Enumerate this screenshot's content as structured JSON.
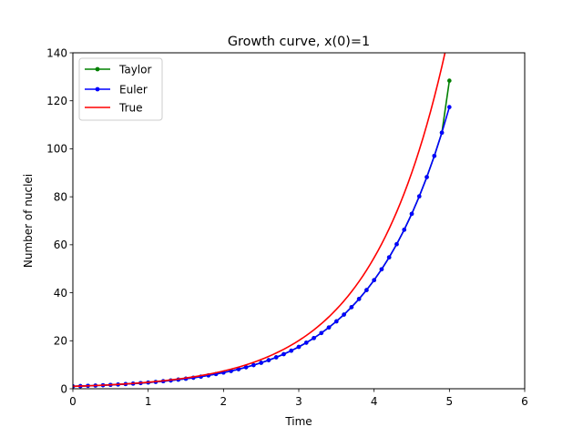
{
  "chart_data": {
    "type": "line",
    "title": "Growth curve, x(0)=1",
    "xlabel": "Time",
    "ylabel": "Number of nuclei",
    "xlim": [
      0,
      6
    ],
    "ylim": [
      0,
      140
    ],
    "xticks": [
      0,
      1,
      2,
      3,
      4,
      5,
      6
    ],
    "yticks": [
      0,
      20,
      40,
      60,
      80,
      100,
      120,
      140
    ],
    "grid": false,
    "legend_position": "upper left",
    "series": [
      {
        "name": "Taylor",
        "color": "#008000",
        "marker": "dot",
        "x_start": 0,
        "x_end": 5,
        "x_step": 0.1,
        "y": [
          1.0,
          1.1,
          1.21,
          1.33,
          1.46,
          1.61,
          1.77,
          1.95,
          2.14,
          2.36,
          2.59,
          2.85,
          3.14,
          3.45,
          3.8,
          4.18,
          4.59,
          5.05,
          5.56,
          6.12,
          6.73,
          7.4,
          8.14,
          8.95,
          9.85,
          10.83,
          11.92,
          13.11,
          14.42,
          15.86,
          17.45,
          19.19,
          21.11,
          23.23,
          25.55,
          28.1,
          30.91,
          34.0,
          37.4,
          41.14,
          45.26,
          49.79,
          54.76,
          60.24,
          66.26,
          72.89,
          80.18,
          88.2,
          97.02,
          106.72,
          128.4
        ]
      },
      {
        "name": "Euler",
        "color": "#0000ff",
        "marker": "dot",
        "x_start": 0,
        "x_end": 5,
        "x_step": 0.1,
        "y": [
          1.0,
          1.1,
          1.21,
          1.33,
          1.46,
          1.61,
          1.77,
          1.95,
          2.14,
          2.36,
          2.59,
          2.85,
          3.14,
          3.45,
          3.8,
          4.18,
          4.59,
          5.05,
          5.56,
          6.12,
          6.73,
          7.4,
          8.14,
          8.95,
          9.85,
          10.83,
          11.92,
          13.11,
          14.42,
          15.86,
          17.45,
          19.19,
          21.11,
          23.23,
          25.55,
          28.1,
          30.91,
          34.0,
          37.4,
          41.14,
          45.26,
          49.79,
          54.76,
          60.24,
          66.26,
          72.89,
          80.18,
          88.2,
          97.02,
          106.72,
          117.39
        ]
      },
      {
        "name": "True",
        "color": "#ff0000",
        "marker": "none",
        "x_start": 0,
        "x_end": 4.95,
        "x_step": 0.05,
        "function": "exp(x)"
      }
    ]
  }
}
